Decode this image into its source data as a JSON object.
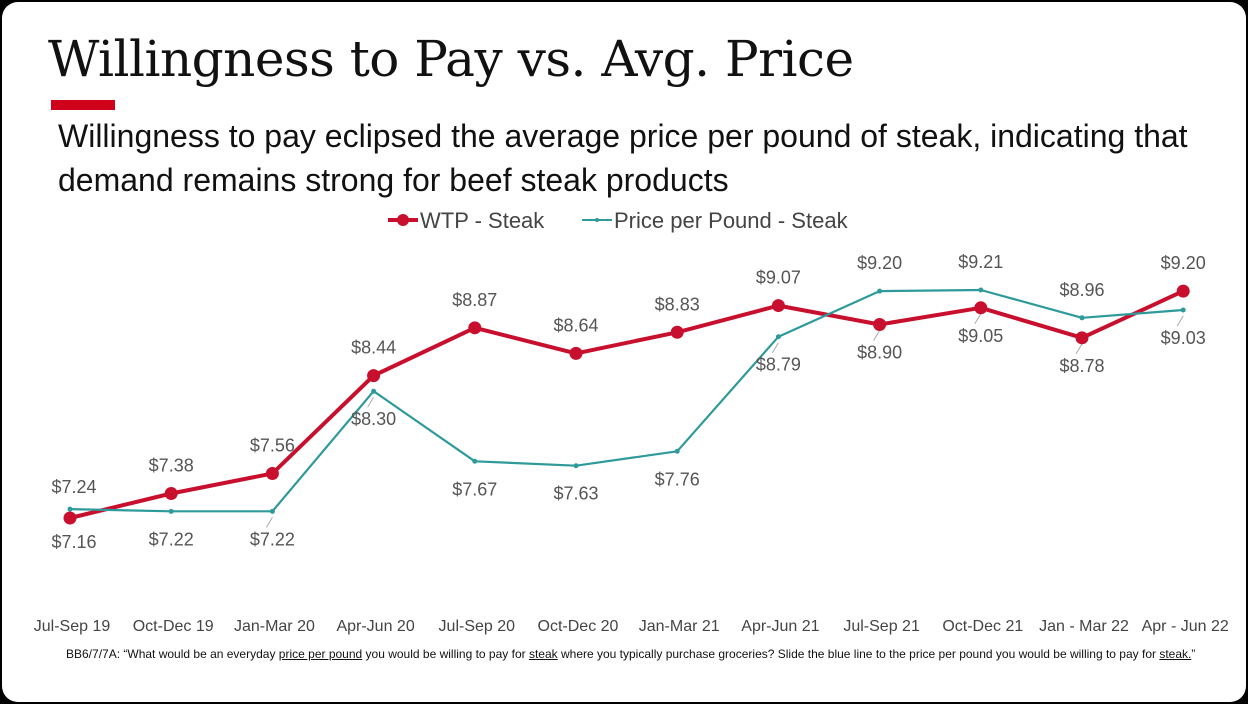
{
  "slide": {
    "title": "Willingness to Pay vs. Avg. Price",
    "subtitle": "Willingness to pay eclipsed the average price per pound of steak, indicating that demand remains strong for beef steak products",
    "accent_color": "#d0021b"
  },
  "chart_data": {
    "type": "line",
    "categories": [
      "Jul-Sep 19",
      "Oct-Dec 19",
      "Jan-Mar 20",
      "Apr-Jun 20",
      "Jul-Sep 20",
      "Oct-Dec 20",
      "Jan-Mar 21",
      "Apr-Jun 21",
      "Jul-Sep 21",
      "Oct-Dec 21",
      "Jan - Mar 22",
      "Apr - Jun 22"
    ],
    "series": [
      {
        "name": "WTP - Steak",
        "color": "#c8102e",
        "values": [
          7.16,
          7.38,
          7.56,
          8.44,
          8.87,
          8.64,
          8.83,
          9.07,
          8.9,
          9.05,
          8.78,
          9.2
        ],
        "labels": [
          "$7.16",
          "$7.38",
          "$7.56",
          "$8.44",
          "$8.87",
          "$8.64",
          "$8.83",
          "$9.07",
          "$8.90",
          "$9.05",
          "$8.78",
          "$9.20"
        ],
        "label_pos": [
          "below",
          "above",
          "above",
          "above",
          "above",
          "above",
          "above",
          "above",
          "below",
          "below",
          "below",
          "above"
        ]
      },
      {
        "name": "Price per Pound - Steak",
        "color": "#2e9a9a",
        "values": [
          7.24,
          7.22,
          7.22,
          8.3,
          7.67,
          7.63,
          7.76,
          8.79,
          9.2,
          9.21,
          8.96,
          9.03
        ],
        "labels": [
          "$7.24",
          "$7.22",
          "$7.22",
          "$8.30",
          "$7.67",
          "$7.63",
          "$7.76",
          "$8.79",
          "$9.20",
          "$9.21",
          "$8.96",
          "$9.03"
        ],
        "label_pos": [
          "above",
          "below",
          "below",
          "below",
          "below",
          "below",
          "below",
          "below",
          "above",
          "above",
          "above",
          "below"
        ]
      }
    ],
    "legend_position": "top-center",
    "grid": false,
    "y_axis_visible": false
  },
  "footnote": {
    "prefix": "BB6/7/7A: “What would be an everyday ",
    "u1": "price per pound",
    "mid1": " you would be willing to pay for ",
    "u2": "steak",
    "mid2": " where you typically purchase groceries? Slide the blue line to the price per pound you would be willing to pay for ",
    "u3": "steak.",
    "suffix": "”"
  }
}
